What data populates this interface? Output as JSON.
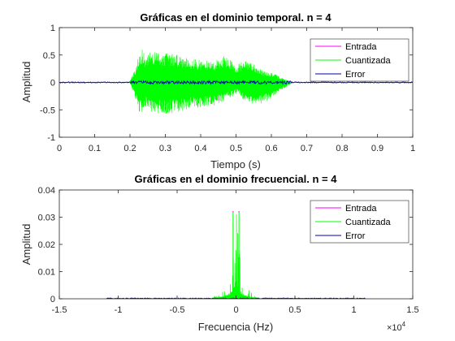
{
  "chart_data": [
    {
      "type": "line",
      "title": "Gráficas en el dominio temporal. n = 4",
      "xlabel": "Tiempo (s)",
      "ylabel": "Amplitud",
      "xlim": [
        0,
        1
      ],
      "ylim": [
        -1,
        1
      ],
      "xticks": [
        "0",
        "0.1",
        "0.2",
        "0.3",
        "0.4",
        "0.5",
        "0.6",
        "0.7",
        "0.8",
        "0.9",
        "1"
      ],
      "yticks": [
        "-1",
        "-0.5",
        "0",
        "0.5",
        "1"
      ],
      "grid": false,
      "legend": "top-right",
      "series": [
        {
          "name": "Entrada",
          "color": "#ff00ff"
        },
        {
          "name": "Cuantizada",
          "color": "#00ff00",
          "envelope": {
            "t": [
              0.2,
              0.215,
              0.225,
              0.235,
              0.245,
              0.26,
              0.28,
              0.3,
              0.33,
              0.36,
              0.4,
              0.44,
              0.46,
              0.48,
              0.5,
              0.52,
              0.55,
              0.58,
              0.6,
              0.62,
              0.64,
              0.655
            ],
            "pos": [
              0.03,
              0.25,
              0.55,
              0.6,
              0.45,
              0.58,
              0.55,
              0.55,
              0.52,
              0.47,
              0.4,
              0.38,
              0.5,
              0.45,
              0.3,
              0.4,
              0.35,
              0.2,
              0.18,
              0.12,
              0.05,
              0.03
            ],
            "neg": [
              -0.03,
              -0.3,
              -0.57,
              -0.55,
              -0.45,
              -0.57,
              -0.58,
              -0.58,
              -0.55,
              -0.5,
              -0.45,
              -0.42,
              -0.35,
              -0.3,
              -0.2,
              -0.32,
              -0.4,
              -0.38,
              -0.28,
              -0.18,
              -0.1,
              -0.03
            ]
          }
        },
        {
          "name": "Error",
          "color": "#0000b0",
          "amplitude": 0.03
        }
      ]
    },
    {
      "type": "line",
      "title": "Gráficas en el dominio frecuencial. n = 4",
      "xlabel": "Frecuencia (Hz)",
      "ylabel": "Amplitud",
      "xlim": [
        -15000,
        15000
      ],
      "ylim": [
        0,
        0.04
      ],
      "xticks": [
        "-1.5",
        "-1",
        "-0.5",
        "0",
        "0.5",
        "1",
        "1.5"
      ],
      "yticks": [
        "0",
        "0.01",
        "0.02",
        "0.03",
        "0.04"
      ],
      "x_multiplier": "×10",
      "x_multiplier_exp": "4",
      "grid": false,
      "legend": "top-right",
      "series": [
        {
          "name": "Entrada",
          "color": "#ff00ff",
          "peaks_hz": [
            -250,
            250
          ],
          "peak_value": 0.0322
        },
        {
          "name": "Cuantizada",
          "color": "#00ff00",
          "peaks_hz": [
            -250,
            250
          ],
          "peak_value": 0.0318,
          "spread_hz": 2000
        },
        {
          "name": "Error",
          "color": "#0000b0",
          "amplitude": 0.0003
        }
      ]
    }
  ]
}
